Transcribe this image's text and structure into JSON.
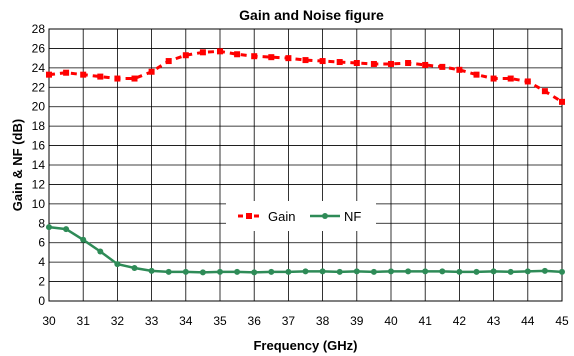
{
  "chart_data": {
    "type": "line",
    "title": "Gain and Noise figure",
    "xlabel": "Frequency (GHz)",
    "ylabel": "Gain & NF  (dB)",
    "xlim": [
      30,
      45
    ],
    "ylim": [
      0,
      28
    ],
    "xticks": [
      30,
      31,
      32,
      33,
      34,
      35,
      36,
      37,
      38,
      39,
      40,
      41,
      42,
      43,
      44,
      45
    ],
    "yticks": [
      0,
      2,
      4,
      6,
      8,
      10,
      12,
      14,
      16,
      18,
      20,
      22,
      24,
      26,
      28
    ],
    "grid": true,
    "legend_position": "center-left",
    "series": [
      {
        "name": "Gain",
        "color": "#ff0000",
        "style": "dashed-square-markers",
        "x": [
          30,
          30.5,
          31,
          31.5,
          32,
          32.5,
          33,
          33.5,
          34,
          34.5,
          35,
          35.5,
          36,
          36.5,
          37,
          37.5,
          38,
          38.5,
          39,
          39.5,
          40,
          40.5,
          41,
          41.5,
          42,
          42.5,
          43,
          43.5,
          44,
          44.5,
          45
        ],
        "y": [
          23.3,
          23.5,
          23.3,
          23.1,
          22.9,
          22.9,
          23.6,
          24.7,
          25.3,
          25.6,
          25.7,
          25.4,
          25.2,
          25.1,
          25.0,
          24.8,
          24.7,
          24.6,
          24.5,
          24.4,
          24.4,
          24.5,
          24.3,
          24.1,
          23.8,
          23.3,
          22.9,
          22.9,
          22.6,
          21.6,
          20.5
        ]
      },
      {
        "name": "NF",
        "color": "#2e8b57",
        "style": "solid-circle-markers",
        "x": [
          30,
          30.5,
          31,
          31.5,
          32,
          32.5,
          33,
          33.5,
          34,
          34.5,
          35,
          35.5,
          36,
          36.5,
          37,
          37.5,
          38,
          38.5,
          39,
          39.5,
          40,
          40.5,
          41,
          41.5,
          42,
          42.5,
          43,
          43.5,
          44,
          44.5,
          45
        ],
        "y": [
          7.6,
          7.4,
          6.3,
          5.1,
          3.8,
          3.4,
          3.1,
          3.0,
          3.0,
          2.95,
          3.0,
          3.0,
          2.95,
          3.0,
          3.0,
          3.05,
          3.05,
          3.0,
          3.05,
          3.0,
          3.05,
          3.05,
          3.05,
          3.05,
          3.0,
          3.0,
          3.05,
          3.0,
          3.05,
          3.1,
          3.0
        ]
      }
    ]
  }
}
